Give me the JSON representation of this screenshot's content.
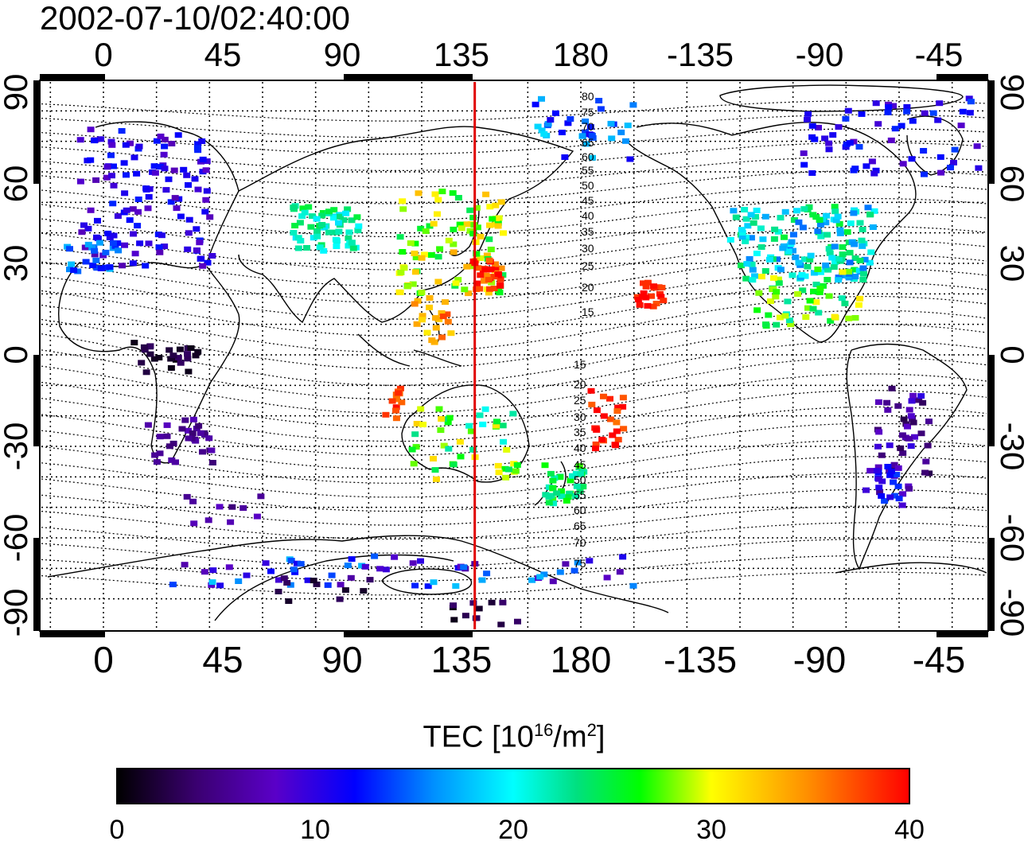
{
  "title": "2002-07-10/02:40:00",
  "top_lon_ticks": [
    "0",
    "45",
    "90",
    "135",
    "180",
    "-135",
    "-90",
    "-45"
  ],
  "bottom_lon_ticks": [
    "0",
    "45",
    "90",
    "135",
    "180",
    "-135",
    "-90",
    "-45"
  ],
  "lat_ticks_left": [
    "90",
    "60",
    "30",
    "0",
    "-30",
    "-60",
    "-90"
  ],
  "lat_ticks_right": [
    "90",
    "60",
    "30",
    "0",
    "-30",
    "-60",
    "-90"
  ],
  "contour_labels_north": [
    "80",
    "75",
    "70",
    "65",
    "60",
    "55",
    "50",
    "45",
    "40",
    "35",
    "30",
    "25",
    "20",
    "15"
  ],
  "contour_labels_south": [
    "15",
    "20",
    "25",
    "30",
    "35",
    "40",
    "45",
    "50",
    "55",
    "60",
    "65",
    "70",
    "75"
  ],
  "meridian_line": {
    "longitude": 140,
    "color": "#e00000"
  },
  "colorbar": {
    "label_main": "TEC  [10",
    "label_exp1": "16",
    "label_mid": "/m",
    "label_exp2": "2",
    "label_end": "]",
    "ticks": [
      "0",
      "10",
      "20",
      "30",
      "40"
    ],
    "min": 0,
    "max": 40,
    "colors": [
      "#000000",
      "#3a0070",
      "#5a00c8",
      "#0000ff",
      "#0090ff",
      "#00ffff",
      "#00e080",
      "#00ff00",
      "#a0ff00",
      "#ffff00",
      "#ff9000",
      "#ff2000",
      "#ff0000"
    ]
  }
}
